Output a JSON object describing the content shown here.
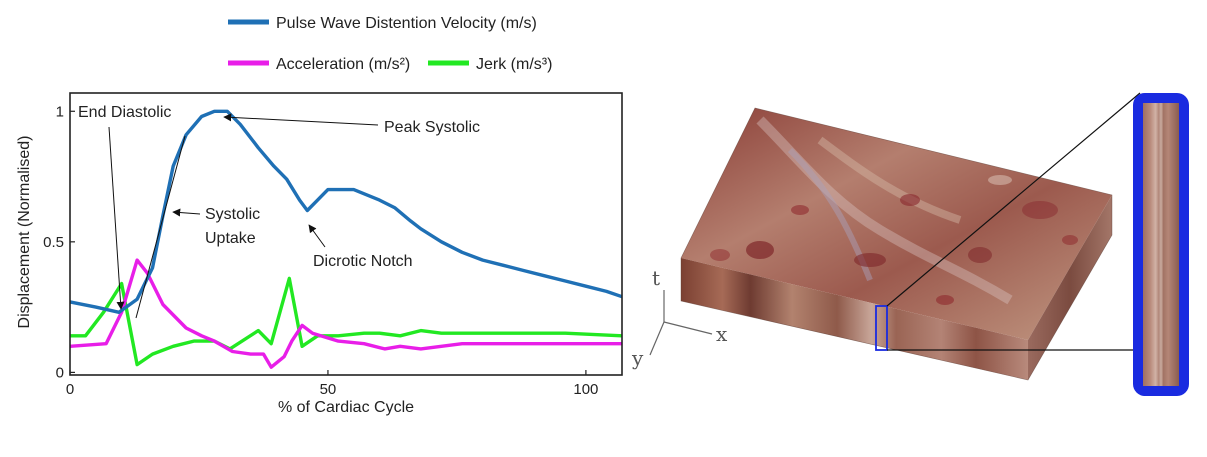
{
  "chart_data": {
    "type": "line",
    "xlabel": "% of Cardiac Cycle",
    "ylabel": "Displacement (Normalised)",
    "xlim": [
      0,
      107
    ],
    "ylim": [
      -0.01,
      1.07
    ],
    "xticks": [
      0,
      50,
      100
    ],
    "yticks": [
      0,
      0.5,
      1
    ],
    "xtick_labels": [
      "0",
      "50",
      "100"
    ],
    "ytick_labels": [
      "0",
      "0.5",
      "1"
    ],
    "legend_position": "top",
    "series": [
      {
        "name": "Pulse Wave Distention Velocity (m/s)",
        "color": "#1f70b5",
        "x": [
          0,
          5,
          9.5,
          13,
          16,
          18,
          20,
          22.5,
          25.5,
          28,
          30.5,
          33,
          36.5,
          39.5,
          42,
          44.5,
          46,
          48,
          50,
          52.5,
          55,
          57.5,
          60,
          63,
          66,
          68,
          72,
          76,
          80,
          84,
          88,
          92,
          96,
          100,
          104,
          107
        ],
        "y": [
          0.27,
          0.25,
          0.23,
          0.28,
          0.4,
          0.6,
          0.79,
          0.91,
          0.98,
          1.0,
          1.0,
          0.95,
          0.86,
          0.79,
          0.74,
          0.66,
          0.62,
          0.66,
          0.7,
          0.7,
          0.7,
          0.68,
          0.66,
          0.63,
          0.58,
          0.55,
          0.5,
          0.46,
          0.43,
          0.41,
          0.39,
          0.37,
          0.35,
          0.33,
          0.31,
          0.29
        ]
      },
      {
        "name": "Acceleration (m/s²)",
        "color": "#e81ee8",
        "x": [
          0,
          7,
          10,
          13,
          15,
          18,
          22.5,
          25.5,
          28,
          31.5,
          35,
          37.5,
          39,
          41.5,
          43,
          45,
          47,
          52,
          57,
          61,
          64,
          68,
          72,
          76,
          80,
          88,
          96,
          107
        ],
        "y": [
          0.1,
          0.11,
          0.23,
          0.43,
          0.38,
          0.26,
          0.17,
          0.14,
          0.12,
          0.08,
          0.07,
          0.07,
          0.02,
          0.06,
          0.12,
          0.18,
          0.15,
          0.12,
          0.11,
          0.09,
          0.1,
          0.09,
          0.1,
          0.11,
          0.11,
          0.11,
          0.11,
          0.11
        ]
      },
      {
        "name": "Jerk (m/s³)",
        "color": "#22e822",
        "x": [
          0,
          3,
          6.5,
          10,
          13,
          16,
          20,
          24,
          28,
          31,
          36.5,
          39,
          42.5,
          45,
          48,
          52,
          57,
          60,
          64,
          68,
          72,
          76,
          80,
          88,
          96,
          107
        ],
        "y": [
          0.14,
          0.14,
          0.23,
          0.34,
          0.03,
          0.07,
          0.1,
          0.12,
          0.12,
          0.09,
          0.16,
          0.11,
          0.36,
          0.1,
          0.14,
          0.14,
          0.15,
          0.15,
          0.14,
          0.16,
          0.15,
          0.15,
          0.15,
          0.15,
          0.15,
          0.14
        ]
      }
    ],
    "annotations": [
      {
        "text": "End Diastolic",
        "target": [
          9.5,
          0.3
        ]
      },
      {
        "text": "Peak Systolic",
        "target": [
          29.5,
          1.0
        ]
      },
      {
        "text": "Systolic",
        "target": [
          19.5,
          0.82
        ]
      },
      {
        "text": "Uptake",
        "target": [
          19.5,
          0.82
        ]
      },
      {
        "text": "Dicrotic Notch",
        "target": [
          46,
          0.61
        ]
      }
    ]
  },
  "figure_b": {
    "axis_labels": {
      "t": "t",
      "x": "x",
      "y": "y"
    }
  },
  "colors": {
    "highlight_box": "#1a2be0",
    "axes": "#222222",
    "tissue_base": "#a86a5a"
  }
}
